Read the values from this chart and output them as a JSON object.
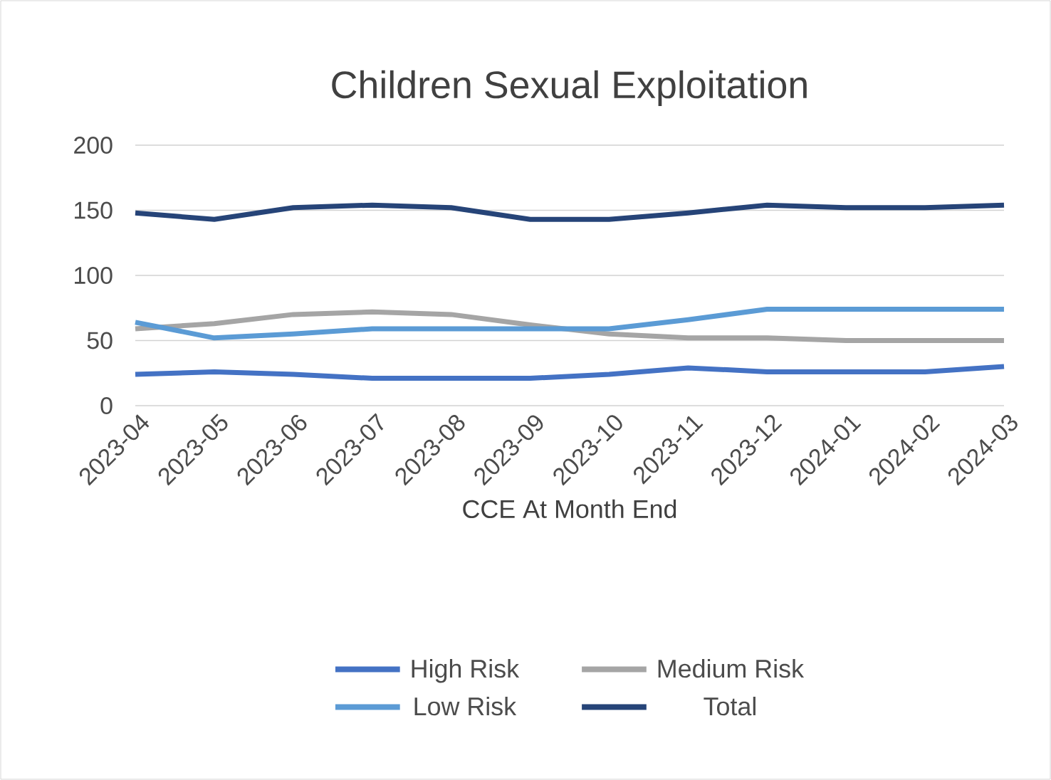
{
  "chart_data": {
    "type": "line",
    "title": "Children Sexual Exploitation",
    "xlabel": "CCE At Month End",
    "categories": [
      "2023-04",
      "2023-05",
      "2023-06",
      "2023-07",
      "2023-08",
      "2023-09",
      "2023-10",
      "2023-11",
      "2023-12",
      "2024-01",
      "2024-02",
      "2024-03"
    ],
    "series": [
      {
        "name": "High Risk",
        "color": "#4472c4",
        "values": [
          24,
          26,
          24,
          21,
          21,
          21,
          24,
          29,
          26,
          26,
          26,
          30
        ]
      },
      {
        "name": "Medium Risk",
        "color": "#a5a5a5",
        "values": [
          59,
          63,
          70,
          72,
          70,
          62,
          55,
          52,
          52,
          50,
          50,
          50
        ]
      },
      {
        "name": "Low Risk",
        "color": "#5b9bd5",
        "values": [
          64,
          52,
          55,
          59,
          59,
          59,
          59,
          66,
          74,
          74,
          74,
          74
        ]
      },
      {
        "name": "Total",
        "color": "#264478",
        "values": [
          148,
          143,
          152,
          154,
          152,
          143,
          143,
          148,
          154,
          152,
          152,
          154
        ]
      }
    ],
    "ylim": [
      0,
      200
    ],
    "yticks": [
      0,
      50,
      100,
      150,
      200
    ],
    "grid": "y",
    "legend": "bottom",
    "marker": "none",
    "line_style": "solid"
  }
}
